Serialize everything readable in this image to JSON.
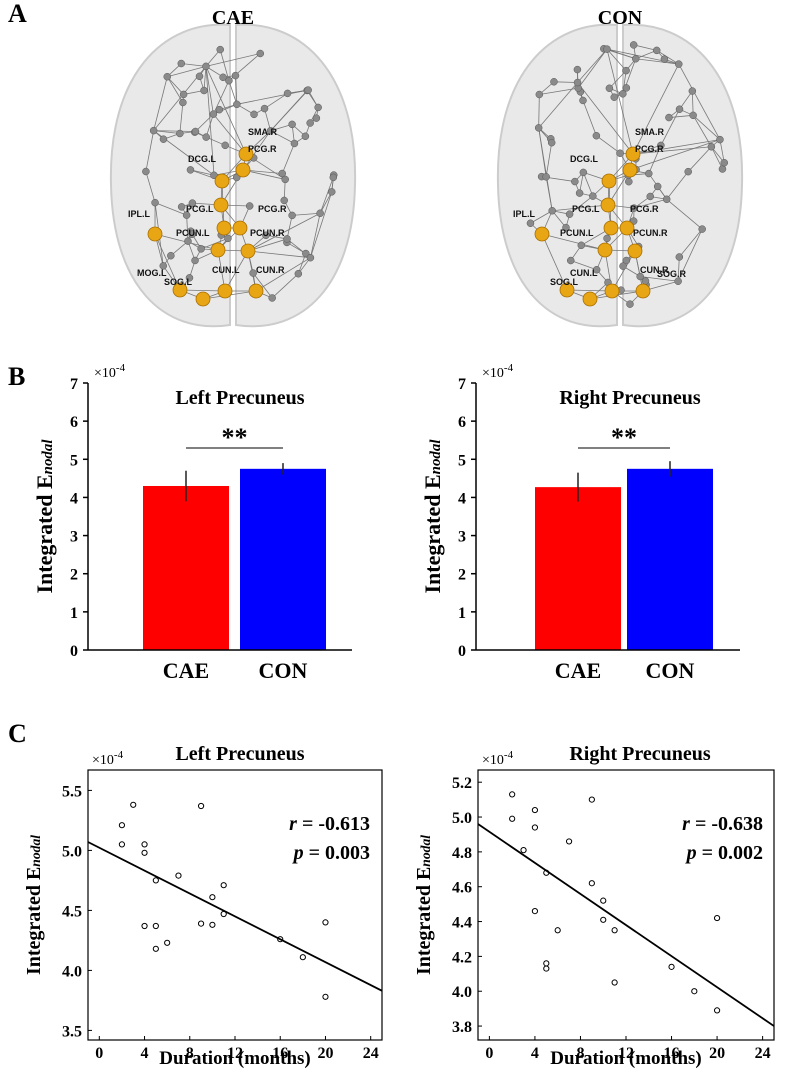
{
  "panel_labels": [
    "A",
    "B",
    "C"
  ],
  "brain_panels": [
    {
      "title": "CAE",
      "labels": [
        "SMA.R",
        "PCG.R",
        "DCG.L",
        "PCG.L",
        "PCG.R",
        "IPL.L",
        "PCUN.L",
        "PCUN.R",
        "MOG.L",
        "SOG.L",
        "CUN.L",
        "CUN.R"
      ]
    },
    {
      "title": "CON",
      "labels": [
        "SMA.R",
        "PCG.R",
        "DCG.L",
        "PCG.L",
        "PCG.R",
        "IPL.L",
        "PCUN.L",
        "PCUN.R",
        "SOG.L",
        "CUN.L",
        "CUN.R",
        "SOG.R"
      ]
    }
  ],
  "chart_data": [
    {
      "type": "bar",
      "title": "Left Precuneus",
      "categories": [
        "CAE",
        "CON"
      ],
      "values": [
        4.3,
        4.75
      ],
      "errors": [
        0.4,
        0.15
      ],
      "colors": [
        "#ff0000",
        "#0000ff"
      ],
      "ylim": [
        0,
        7
      ],
      "yticks": [
        0,
        1,
        2,
        3,
        4,
        5,
        6,
        7
      ],
      "y_label": "Integrated E",
      "y_label_sub": "nodal",
      "axis_multiplier": "×10",
      "axis_exponent": "-4",
      "significance": "**"
    },
    {
      "type": "bar",
      "title": "Right Precuneus",
      "categories": [
        "CAE",
        "CON"
      ],
      "values": [
        4.27,
        4.75
      ],
      "errors": [
        0.38,
        0.2
      ],
      "colors": [
        "#ff0000",
        "#0000ff"
      ],
      "ylim": [
        0,
        7
      ],
      "yticks": [
        0,
        1,
        2,
        3,
        4,
        5,
        6,
        7
      ],
      "y_label": "Integrated E",
      "y_label_sub": "nodal",
      "axis_multiplier": "×10",
      "axis_exponent": "-4",
      "significance": "**"
    },
    {
      "type": "scatter",
      "title": "Left Precuneus",
      "x": [
        2,
        2,
        3,
        4,
        4,
        4,
        5,
        5,
        5,
        6,
        7,
        9,
        9,
        10,
        10,
        11,
        11,
        16,
        18,
        20,
        20
      ],
      "values": [
        5.21,
        5.05,
        5.38,
        5.05,
        4.98,
        4.37,
        4.75,
        4.37,
        4.18,
        4.23,
        4.79,
        5.37,
        4.39,
        4.61,
        4.38,
        4.71,
        4.47,
        4.26,
        4.11,
        4.4,
        3.78
      ],
      "fit_x": [
        -1,
        25
      ],
      "fit_y": [
        5.07,
        3.83
      ],
      "xlim": [
        -1,
        25
      ],
      "xticks": [
        0,
        4,
        8,
        12,
        16,
        20,
        24
      ],
      "ylim": [
        3.42,
        5.67
      ],
      "yticks": [
        {
          "value": 3.5,
          "label": "3.5"
        },
        {
          "value": 4,
          "label": "4.0"
        },
        {
          "value": 4.5,
          "label": "4.5"
        },
        {
          "value": 5,
          "label": "5.0"
        },
        {
          "value": 5.5,
          "label": "5.5"
        }
      ],
      "x_label": "Duration (months)",
      "y_label": "Integrated E",
      "y_label_sub": "nodal",
      "axis_multiplier": "×10",
      "axis_exponent": "-4",
      "stats": [
        {
          "symbol": "r",
          "text": " = -0.613"
        },
        {
          "symbol": "p",
          "text": " = 0.003"
        }
      ]
    },
    {
      "type": "scatter",
      "title": "Right Precuneus",
      "x": [
        2,
        2,
        3,
        4,
        4,
        4,
        5,
        5,
        5,
        6,
        7,
        9,
        9,
        10,
        10,
        11,
        11,
        16,
        18,
        20,
        20
      ],
      "values": [
        5.13,
        4.99,
        4.81,
        5.04,
        4.94,
        4.46,
        4.68,
        4.16,
        4.13,
        4.35,
        4.86,
        5.1,
        4.62,
        4.52,
        4.41,
        4.35,
        4.05,
        4.14,
        4.0,
        4.42,
        3.89
      ],
      "fit_x": [
        -1,
        25
      ],
      "fit_y": [
        4.96,
        3.8
      ],
      "xlim": [
        -1,
        25
      ],
      "xticks": [
        0,
        4,
        8,
        12,
        16,
        20,
        24
      ],
      "ylim": [
        3.72,
        5.27
      ],
      "yticks": [
        {
          "value": 3.8,
          "label": "3.8"
        },
        {
          "value": 4,
          "label": "4.0"
        },
        {
          "value": 4.2,
          "label": "4.2"
        },
        {
          "value": 4.4,
          "label": "4.4"
        },
        {
          "value": 4.6,
          "label": "4.6"
        },
        {
          "value": 4.8,
          "label": "4.8"
        },
        {
          "value": 5,
          "label": "5.0"
        },
        {
          "value": 5.2,
          "label": "5.2"
        }
      ],
      "x_label": "Duration (months)",
      "y_label": "Integrated E",
      "y_label_sub": "nodal",
      "axis_multiplier": "×10",
      "axis_exponent": "-4",
      "stats": [
        {
          "symbol": "r",
          "text": " = -0.638"
        },
        {
          "symbol": "p",
          "text": " = 0.002"
        }
      ]
    }
  ]
}
